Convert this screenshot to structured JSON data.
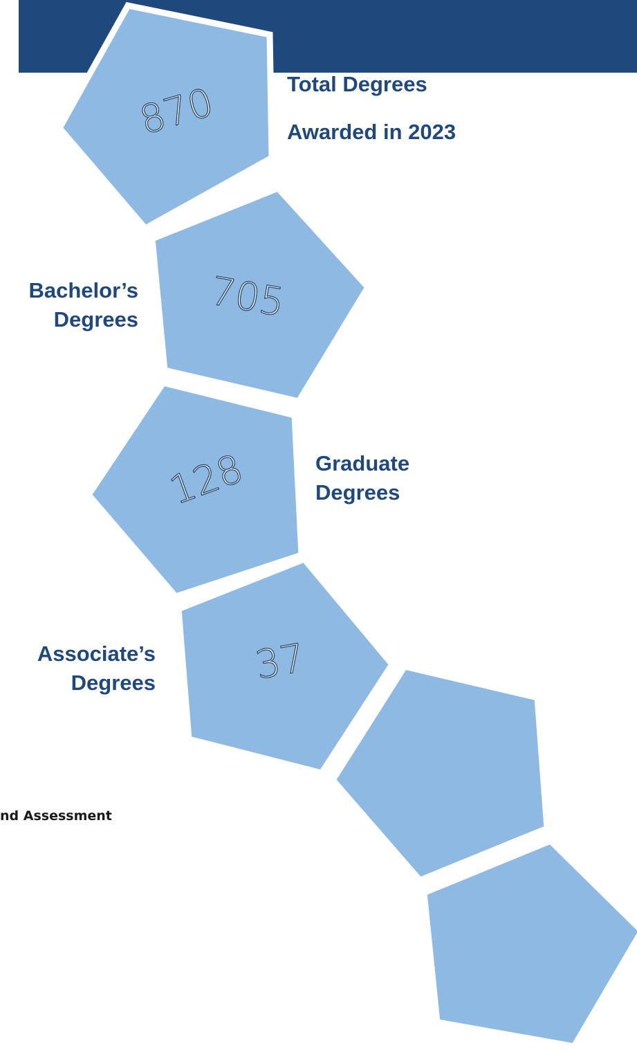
{
  "items": [
    {
      "number": "870",
      "label": [
        "Total Degrees",
        "Awarded in 2023"
      ]
    },
    {
      "number": "705",
      "label": [
        "Bachelor’s",
        "Degrees"
      ]
    },
    {
      "number": "128",
      "label": [
        "Graduate",
        "Degrees"
      ]
    },
    {
      "number": "37",
      "label": [
        "Associate’s",
        "Degrees"
      ]
    }
  ],
  "footer": "nd Assessment"
}
